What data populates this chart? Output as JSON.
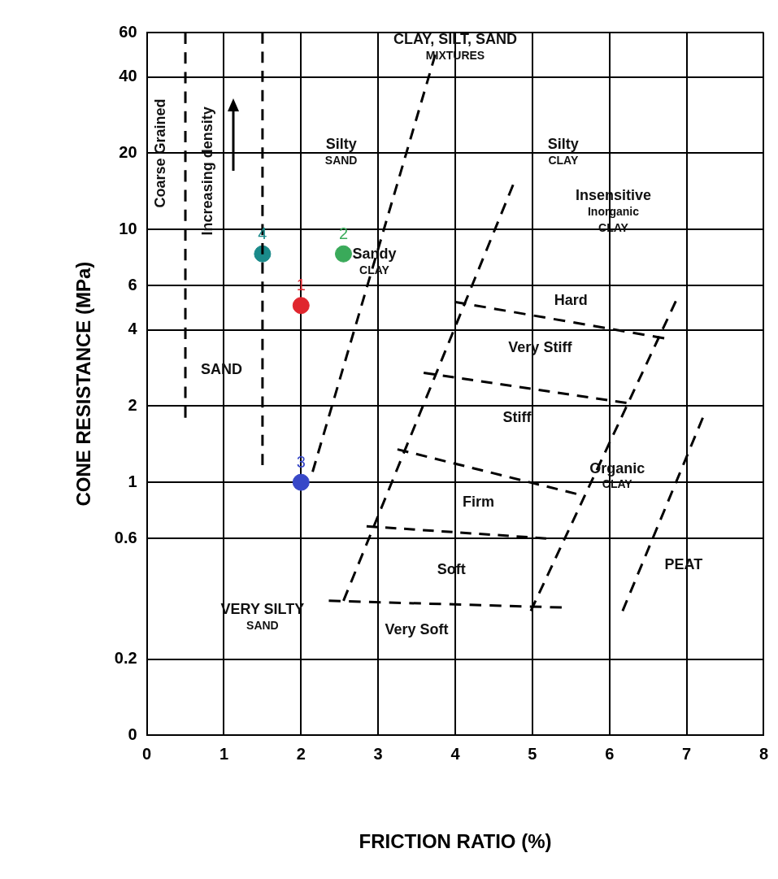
{
  "chart_data": {
    "type": "scatter",
    "xlabel": "FRICTION RATIO (%)",
    "ylabel": "CONE RESISTANCE (MPa)",
    "xlim": [
      0,
      8
    ],
    "xticks": [
      0,
      1,
      2,
      3,
      4,
      5,
      6,
      7,
      8
    ],
    "ylim": [
      0.1,
      60
    ],
    "yticks": [
      60,
      40,
      20,
      10,
      6,
      4,
      2,
      1,
      0.6,
      0.2,
      {
        "value": 0.1,
        "label": "0"
      }
    ],
    "log": "y",
    "grid": true,
    "legend": false,
    "series": [
      {
        "type": "line",
        "line_style": "dashed",
        "color": "#000000",
        "x": [
          0.5,
          0.5
        ],
        "values": [
          60,
          1.8
        ]
      },
      {
        "type": "line",
        "line_style": "dashed",
        "color": "#000000",
        "x": [
          1.5,
          1.5
        ],
        "values": [
          60,
          1.17
        ]
      },
      {
        "type": "line",
        "line_style": "dashed",
        "color": "#000000",
        "x": [
          2.15,
          3.74
        ],
        "values": [
          1.1,
          49
        ]
      },
      {
        "type": "line",
        "line_style": "dashed",
        "color": "#000000",
        "x": [
          2.55,
          4.75
        ],
        "values": [
          0.34,
          15
        ]
      },
      {
        "type": "line",
        "line_style": "dashed",
        "color": "#000000",
        "x": [
          4.98,
          6.86
        ],
        "values": [
          0.31,
          5.2
        ]
      },
      {
        "type": "line",
        "line_style": "dashed",
        "color": "#000000",
        "x": [
          6.17,
          7.21
        ],
        "values": [
          0.31,
          1.8
        ]
      },
      {
        "type": "line",
        "line_style": "dashed",
        "color": "#000000",
        "x": [
          3.99,
          6.71
        ],
        "values": [
          5.17,
          3.71
        ]
      },
      {
        "type": "line",
        "line_style": "dashed",
        "color": "#000000",
        "x": [
          3.59,
          6.22
        ],
        "values": [
          2.71,
          2.06
        ]
      },
      {
        "type": "line",
        "line_style": "dashed",
        "color": "#000000",
        "x": [
          3.25,
          5.57
        ],
        "values": [
          1.35,
          0.9
        ]
      },
      {
        "type": "line",
        "line_style": "dashed",
        "color": "#000000",
        "x": [
          2.85,
          5.18
        ],
        "values": [
          0.67,
          0.6
        ]
      },
      {
        "type": "line",
        "line_style": "dashed",
        "color": "#000000",
        "x": [
          2.36,
          5.38
        ],
        "values": [
          0.34,
          0.32
        ]
      },
      {
        "type": "scatter",
        "marker": "circle",
        "name": "1",
        "color": "#e0262e",
        "x": [
          2
        ],
        "values": [
          5
        ]
      },
      {
        "type": "scatter",
        "marker": "circle",
        "name": "2",
        "color": "#3aaa5a",
        "x": [
          2.55
        ],
        "values": [
          8
        ]
      },
      {
        "type": "scatter",
        "marker": "circle",
        "name": "3",
        "color": "#3848c8",
        "x": [
          2
        ],
        "values": [
          1
        ]
      },
      {
        "type": "scatter",
        "marker": "circle",
        "name": "4",
        "color": "#1a8a8a",
        "x": [
          1.5
        ],
        "values": [
          8
        ]
      }
    ],
    "annotations": [
      "CLAY, SILT, SAND\nMIXTURES",
      "Silty\nSAND",
      "Silty\nCLAY",
      "Insensitive\nInorganic\nCLAY",
      "Sandy\nCLAY",
      "Hard",
      "Very Stiff",
      "Stiff",
      "Organic\nCLAY",
      "Firm",
      "Soft",
      "PEAT",
      "VERY SILTY\nSAND",
      "Very Soft",
      "SAND",
      "Coarse Grained",
      "Increasing density"
    ]
  }
}
